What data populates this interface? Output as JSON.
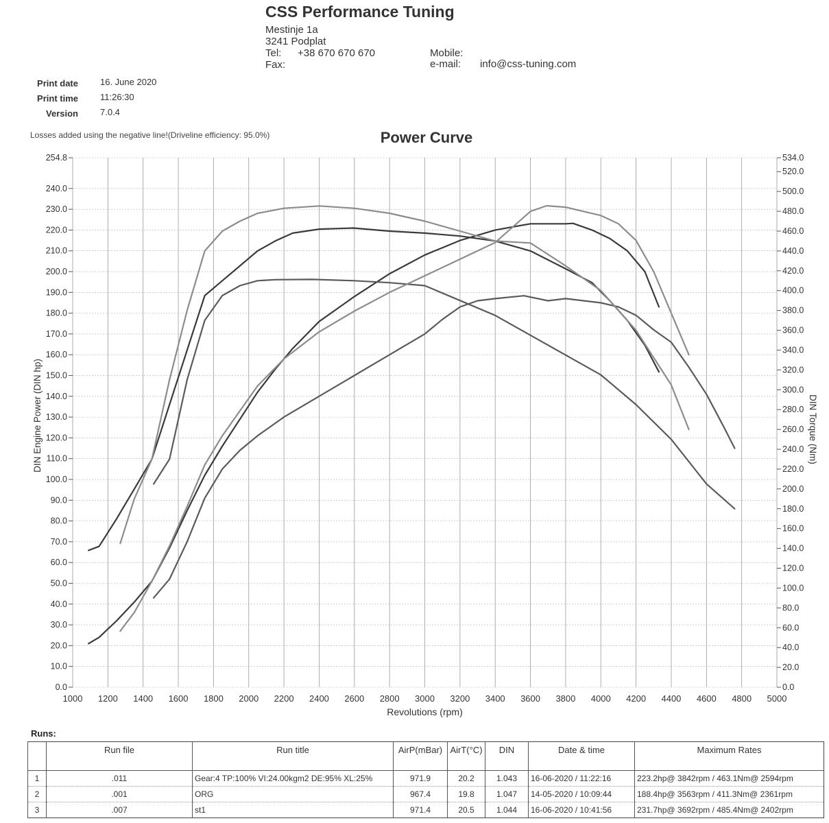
{
  "header": {
    "company": "CSS Performance Tuning",
    "address_line1": "Mestinje 1a",
    "address_line2": "3241 Podplat",
    "tel_label": "Tel:",
    "tel_value": "+38 670 670 670",
    "fax_label": "Fax:",
    "mobile_label": "Mobile:",
    "email_label": "e-mail:",
    "email_value": "info@css-tuning.com"
  },
  "meta": {
    "print_date_label": "Print date",
    "print_date_value": "16. June 2020",
    "print_time_label": "Print time",
    "print_time_value": "11:26:30",
    "version_label": "Version",
    "version_value": "7.0.4"
  },
  "losses_note": "Losses added using the negative line!(Driveline efficiency: 95.0%)",
  "chart_data": {
    "type": "line",
    "title": "Power Curve",
    "xlabel": "Revolutions (rpm)",
    "ylabel": "DIN Engine Power (DIN hp)",
    "y2label": "DIN Torque (Nm)",
    "xlim": [
      1000,
      5000
    ],
    "ylim": [
      0,
      254.8
    ],
    "y2lim": [
      0,
      534.0
    ],
    "x_ticks": [
      1000,
      1200,
      1400,
      1600,
      1800,
      2000,
      2200,
      2400,
      2600,
      2800,
      3000,
      3200,
      3400,
      3600,
      3800,
      4000,
      4200,
      4400,
      4600,
      4800,
      5000
    ],
    "y_ticks": [
      "0.0",
      "10.0",
      "20.0",
      "30.0",
      "40.0",
      "50.0",
      "60.0",
      "70.0",
      "80.0",
      "90.0",
      "100.0",
      "110.0",
      "120.0",
      "130.0",
      "140.0",
      "150.0",
      "160.0",
      "170.0",
      "180.0",
      "190.0",
      "200.0",
      "210.0",
      "220.0",
      "230.0",
      "240.0",
      "254.8"
    ],
    "y2_ticks": [
      "0.0",
      "20.0",
      "40.0",
      "60.0",
      "80.0",
      "100.0",
      "120.0",
      "140.0",
      "160.0",
      "180.0",
      "200.0",
      "220.0",
      "240.0",
      "260.0",
      "280.0",
      "300.0",
      "320.0",
      "340.0",
      "360.0",
      "380.0",
      "400.0",
      "420.0",
      "440.0",
      "460.0",
      "480.0",
      "500.0",
      "520.0",
      "534.0"
    ],
    "grid": true,
    "series": [
      {
        "run": "1",
        "kind": "power",
        "axis": "left",
        "color": "#3a3a3a",
        "x": [
          1090,
          1150,
          1250,
          1350,
          1450,
          1550,
          1650,
          1750,
          1850,
          1950,
          2050,
          2150,
          2250,
          2400,
          2600,
          2800,
          3000,
          3200,
          3400,
          3600,
          3800,
          3842,
          3950,
          4050,
          4150,
          4250,
          4330
        ],
        "y": [
          21,
          24,
          32,
          41,
          51,
          67,
          85,
          102,
          116,
          129,
          142,
          153,
          163,
          176,
          188,
          199,
          208,
          215,
          220,
          223,
          223,
          223.2,
          220,
          216,
          210,
          200,
          183
        ]
      },
      {
        "run": "1",
        "kind": "torque",
        "axis": "right",
        "color": "#3a3a3a",
        "x": [
          1090,
          1150,
          1250,
          1350,
          1450,
          1550,
          1650,
          1750,
          1850,
          1950,
          2050,
          2150,
          2250,
          2400,
          2594,
          2800,
          3000,
          3200,
          3400,
          3600,
          3800,
          3950,
          4050,
          4150,
          4250,
          4330
        ],
        "y": [
          138,
          142,
          170,
          200,
          230,
          285,
          340,
          395,
          410,
          425,
          440,
          450,
          458,
          462,
          463.1,
          460,
          458,
          455,
          450,
          440,
          422,
          408,
          390,
          370,
          345,
          318
        ]
      },
      {
        "run": "2",
        "kind": "power",
        "axis": "left",
        "color": "#5a5a5a",
        "x": [
          1460,
          1550,
          1650,
          1750,
          1850,
          1950,
          2050,
          2200,
          2400,
          2600,
          2800,
          3000,
          3100,
          3200,
          3300,
          3400,
          3563,
          3700,
          3800,
          4000,
          4100,
          4200,
          4300,
          4400,
          4500,
          4600,
          4700,
          4760
        ],
        "y": [
          43,
          52,
          70,
          91,
          105,
          114,
          121,
          130,
          140,
          150,
          160,
          170,
          177,
          183,
          186,
          187,
          188.4,
          186,
          187,
          185,
          183,
          179,
          172,
          166,
          154,
          141,
          125,
          115
        ]
      },
      {
        "run": "2",
        "kind": "torque",
        "axis": "right",
        "color": "#5a5a5a",
        "x": [
          1460,
          1550,
          1650,
          1750,
          1850,
          1950,
          2050,
          2150,
          2361,
          2600,
          2800,
          3000,
          3200,
          3400,
          3600,
          3800,
          4000,
          4200,
          4400,
          4600,
          4760
        ],
        "y": [
          205,
          230,
          310,
          370,
          395,
          405,
          410,
          411,
          411.3,
          410,
          408,
          405,
          390,
          375,
          355,
          335,
          315,
          285,
          250,
          205,
          180
        ]
      },
      {
        "run": "3",
        "kind": "power",
        "axis": "left",
        "color": "#8c8c8c",
        "x": [
          1270,
          1350,
          1450,
          1550,
          1650,
          1750,
          1850,
          1950,
          2050,
          2200,
          2400,
          2600,
          2800,
          3000,
          3200,
          3400,
          3600,
          3692,
          3800,
          3900,
          4000,
          4100,
          4200,
          4300,
          4400,
          4500
        ],
        "y": [
          27,
          36,
          51,
          68,
          87,
          107,
          121,
          133,
          145,
          158,
          171,
          181,
          190,
          198,
          206,
          214,
          229,
          231.7,
          231,
          229,
          227,
          223,
          215,
          200,
          180,
          160
        ]
      },
      {
        "run": "3",
        "kind": "torque",
        "axis": "right",
        "color": "#8c8c8c",
        "x": [
          1270,
          1350,
          1450,
          1550,
          1650,
          1750,
          1850,
          1950,
          2050,
          2200,
          2402,
          2600,
          2800,
          3000,
          3200,
          3400,
          3600,
          3800,
          4000,
          4200,
          4400,
          4500
        ],
        "y": [
          145,
          190,
          230,
          310,
          380,
          440,
          460,
          470,
          478,
          483,
          485.4,
          483,
          478,
          470,
          460,
          450,
          448,
          425,
          400,
          360,
          305,
          260
        ]
      }
    ]
  },
  "runs": {
    "label": "Runs:",
    "headers": [
      "",
      "Run file",
      "Run title",
      "AirP(mBar)",
      "AirT(°C)",
      "DIN",
      "Date & time",
      "Maximum Rates"
    ],
    "rows": [
      {
        "num": "1",
        "file": ".011",
        "title": "Gear:4 TP:100% VI:24.00kgm2 DE:95% XL:25%",
        "airp": "971.9",
        "airt": "20.2",
        "din": "1.043",
        "datetime": "16-06-2020 / 11:22:16",
        "max": "223.2hp@ 3842rpm / 463.1Nm@ 2594rpm"
      },
      {
        "num": "2",
        "file": ".001",
        "title": "ORG",
        "airp": "967.4",
        "airt": "19.8",
        "din": "1.047",
        "datetime": "14-05-2020 / 10:09:44",
        "max": "188.4hp@ 3563rpm / 411.3Nm@ 2361rpm"
      },
      {
        "num": "3",
        "file": ".007",
        "title": "st1",
        "airp": "971.4",
        "airt": "20.5",
        "din": "1.044",
        "datetime": "16-06-2020 / 10:41:56",
        "max": "231.7hp@ 3692rpm / 485.4Nm@ 2402rpm"
      }
    ]
  }
}
